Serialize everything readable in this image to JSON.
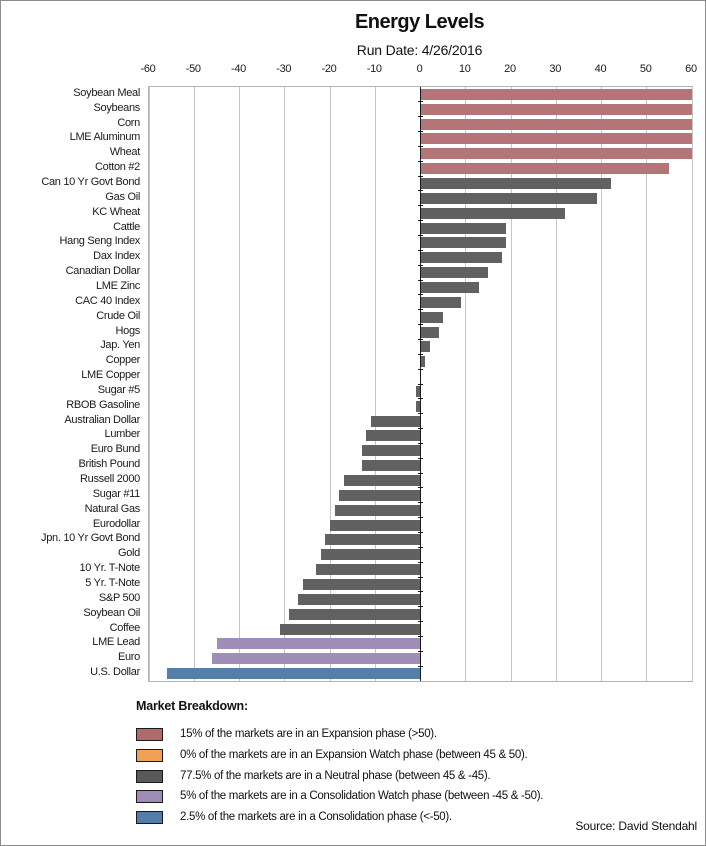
{
  "header": {
    "title": "Energy Levels",
    "subtitle": "Run Date:  4/26/2016"
  },
  "chart_data": {
    "type": "bar",
    "orientation": "horizontal",
    "title": "Energy Levels",
    "subtitle": "Run Date:  4/26/2016",
    "xlim": [
      -60,
      60
    ],
    "x_ticks": [
      -60,
      -50,
      -40,
      -30,
      -20,
      -10,
      0,
      10,
      20,
      30,
      40,
      50,
      60
    ],
    "grid": true,
    "categories": [
      "Soybean Meal",
      "Soybeans",
      "Corn",
      "LME Aluminum",
      "Wheat",
      "Cotton #2",
      "Can 10 Yr Govt Bond",
      "Gas Oil",
      "KC Wheat",
      "Cattle",
      "Hang Seng Index",
      "Dax Index",
      "Canadian Dollar",
      "LME Zinc",
      "CAC 40 Index",
      "Crude Oil",
      "Hogs",
      "Jap. Yen",
      "Copper",
      "LME Copper",
      "Sugar #5",
      "RBOB Gasoline",
      "Australian Dollar",
      "Lumber",
      "Euro Bund",
      "British Pound",
      "Russell 2000",
      "Sugar #11",
      "Natural Gas",
      "Eurodollar",
      "Jpn. 10 Yr Govt Bond",
      "Gold",
      "10 Yr. T-Note",
      "5 Yr. T-Note",
      "S&P 500",
      "Soybean Oil",
      "Coffee",
      "LME Lead",
      "Euro",
      "U.S. Dollar"
    ],
    "values": [
      60,
      60,
      60,
      60,
      60,
      55,
      42,
      39,
      32,
      19,
      19,
      18,
      15,
      13,
      9,
      5,
      4,
      2,
      1,
      0,
      -1,
      -1,
      -11,
      -12,
      -13,
      -13,
      -17,
      -18,
      -19,
      -20,
      -21,
      -22,
      -23,
      -26,
      -27,
      -29,
      -31,
      -45,
      -46,
      -56
    ],
    "phase_colors": {
      "expansion": "#b57477",
      "expansion_watch": "#f0a256",
      "neutral": "#616161",
      "consolidation_watch": "#9e8eb8",
      "consolidation": "#557fab"
    },
    "phase_rules": {
      "expansion": "> 50",
      "expansion_watch": "between 45 & 50",
      "neutral": "between 45 & -45",
      "consolidation_watch": "between -45 & -50",
      "consolidation": "< -50"
    }
  },
  "legend": {
    "title": "Market Breakdown:",
    "items": [
      {
        "swatch_color": "#b0696d",
        "phase": "expansion",
        "label": "15% of the markets are in an Expansion phase (>50)."
      },
      {
        "swatch_color": "#f0a155",
        "phase": "expansion-watch",
        "label": "0% of the markets are in an Expansion Watch phase (between 45 & 50)."
      },
      {
        "swatch_color": "#595959",
        "phase": "neutral",
        "label": "77.5% of the markets are in a Neutral phase (between 45 & -45)."
      },
      {
        "swatch_color": "#9d8db8",
        "phase": "consolidation-watch",
        "label": "5% of the markets are in a Consolidation Watch phase (between -45 & -50)."
      },
      {
        "swatch_color": "#527dab",
        "phase": "consolidation",
        "label": "2.5% of the markets are in a Consolidation phase (<-50)."
      }
    ]
  },
  "footer": {
    "source": "Source: David Stendahl"
  }
}
